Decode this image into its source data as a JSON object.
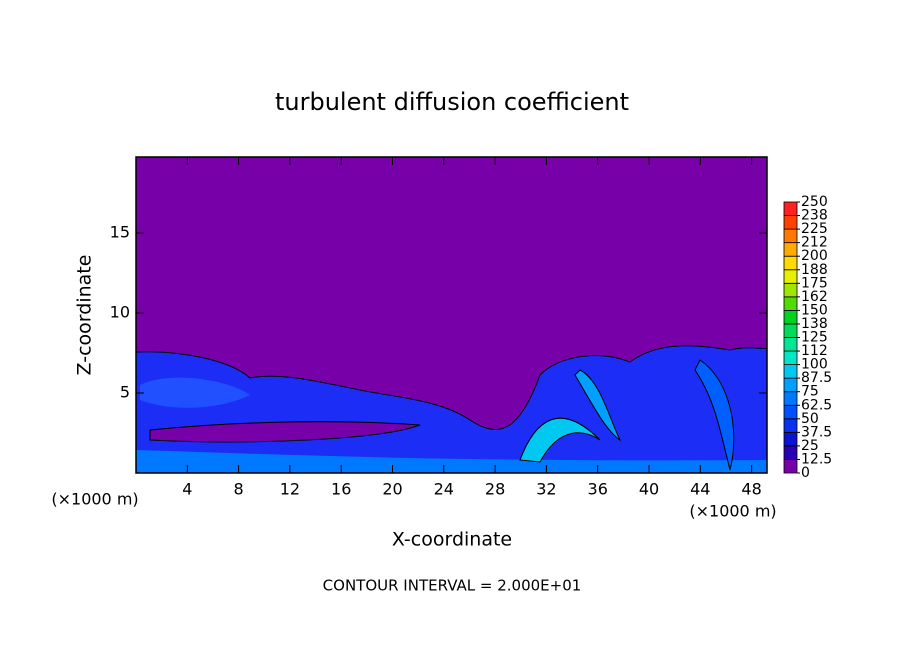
{
  "chart_data": {
    "type": "contour",
    "title": "turbulent diffusion coefficient",
    "x_label": "X-coordinate",
    "y_label": "Z-coordinate",
    "x_unit": "(×1000 m)",
    "y_unit": "(×1000 m)",
    "note": "CONTOUR INTERVAL = 2.000E+01",
    "xlim": [
      0,
      49.2
    ],
    "xticks": [
      4,
      8,
      12,
      16,
      20,
      24,
      28,
      32,
      36,
      40,
      44,
      48
    ],
    "ylim": [
      0,
      19.75
    ],
    "yticks": [
      5,
      10,
      15
    ],
    "colorbar": {
      "ticks": [
        0,
        12.5,
        25,
        37.5,
        50,
        62.5,
        75,
        87.5,
        100,
        {
          "value": 112.5,
          "label": "112"
        },
        125,
        {
          "value": 137.5,
          "label": "138"
        },
        150,
        {
          "value": 162.5,
          "label": "162"
        },
        175,
        {
          "value": 187.5,
          "label": "188"
        },
        200,
        {
          "value": 212.5,
          "label": "212"
        },
        225,
        {
          "value": 237.5,
          "label": "238"
        },
        250
      ],
      "colors": [
        "#7800a8",
        "#2a00b4",
        "#0a14d2",
        "#0a32f0",
        "#0050ff",
        "#0078ff",
        "#00a0ff",
        "#00c8f0",
        "#00e6c8",
        "#00e696",
        "#00dc5a",
        "#00d21e",
        "#50dc00",
        "#a0e600",
        "#e6f000",
        "#ffdc00",
        "#ffaa00",
        "#ff7800",
        "#ff4000",
        "#ff2020"
      ]
    }
  }
}
